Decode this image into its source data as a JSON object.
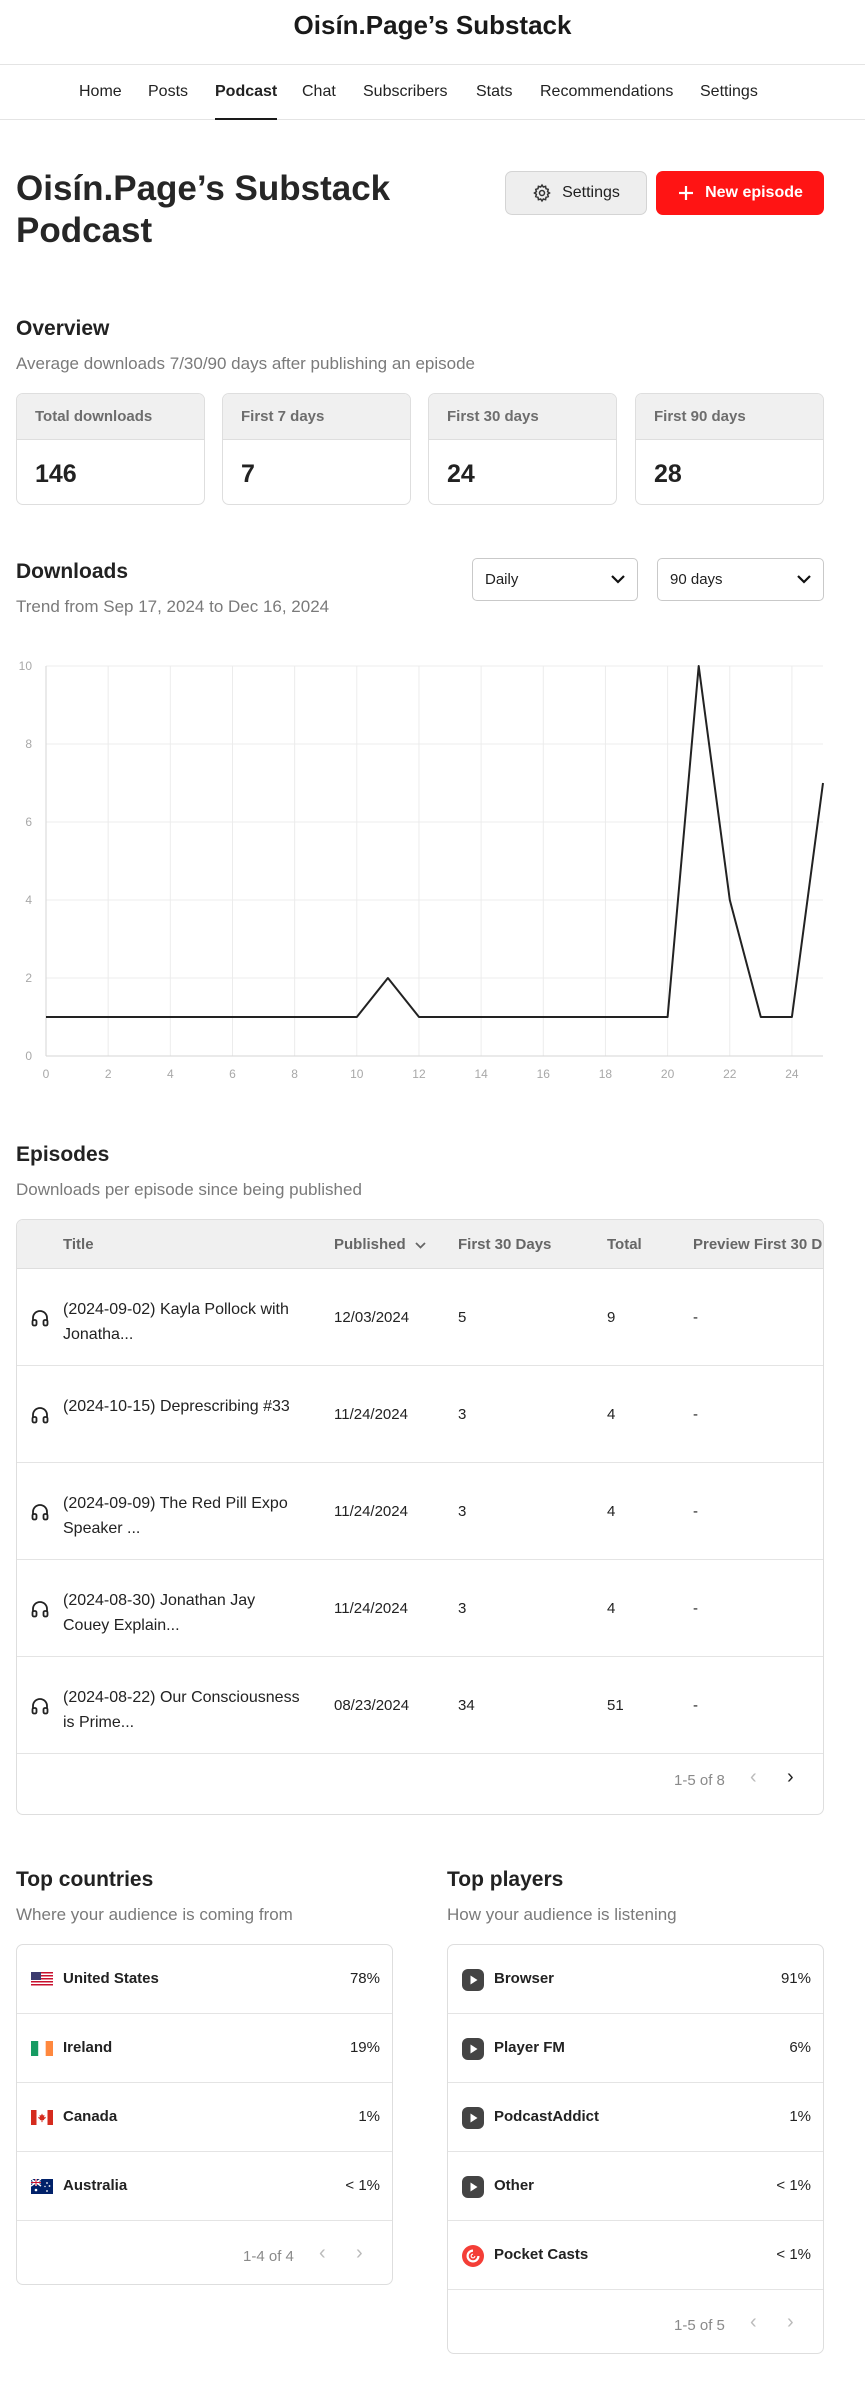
{
  "site_title": "Oisín.Page’s Substack",
  "nav": [
    "Home",
    "Posts",
    "Podcast",
    "Chat",
    "Subscribers",
    "Stats",
    "Recommendations",
    "Settings"
  ],
  "nav_active": "Podcast",
  "page_title": "Oisín.Page’s Substack Podcast",
  "buttons": {
    "settings": "Settings",
    "new_episode": "New episode"
  },
  "overview": {
    "title": "Overview",
    "subtitle": "Average downloads 7/30/90 days after publishing an episode",
    "cards": [
      {
        "label": "Total downloads",
        "value": "146"
      },
      {
        "label": "First 7 days",
        "value": "7"
      },
      {
        "label": "First 30 days",
        "value": "24"
      },
      {
        "label": "First 90 days",
        "value": "28"
      }
    ]
  },
  "downloads": {
    "title": "Downloads",
    "subtitle": "Trend from Sep 17, 2024 to Dec 16, 2024",
    "interval": "Daily",
    "range": "90 days"
  },
  "chart_data": {
    "type": "line",
    "x": [
      0,
      1,
      2,
      3,
      4,
      5,
      6,
      7,
      8,
      9,
      10,
      11,
      12,
      13,
      14,
      15,
      16,
      17,
      18,
      19,
      20,
      21,
      22,
      23,
      23.5,
      24,
      25
    ],
    "y": [
      1,
      1,
      1,
      1,
      1,
      1,
      1,
      1,
      1,
      1,
      1,
      2,
      1,
      1,
      1,
      1,
      1,
      1,
      1,
      1,
      1,
      10,
      4,
      1,
      1,
      1,
      7
    ],
    "xlim": [
      0,
      25
    ],
    "ylim": [
      0,
      10
    ],
    "x_ticks": [
      0,
      2,
      4,
      6,
      8,
      10,
      12,
      14,
      16,
      18,
      20,
      22,
      24
    ],
    "y_ticks": [
      0,
      2,
      4,
      6,
      8,
      10
    ],
    "grid": true,
    "color": "#222222"
  },
  "episodes": {
    "title": "Episodes",
    "subtitle": "Downloads per episode since being published",
    "columns": [
      "Title",
      "Published",
      "First 30 Days",
      "Total",
      "Preview First 30 D"
    ],
    "rows": [
      {
        "title": "(2024-09-02) Kayla Pollock with Jonatha...",
        "published": "12/03/2024",
        "first30": "5",
        "total": "9",
        "preview": "-"
      },
      {
        "title": "(2024-10-15) Deprescribing #33",
        "published": "11/24/2024",
        "first30": "3",
        "total": "4",
        "preview": "-"
      },
      {
        "title": "(2024-09-09) The Red Pill Expo Speaker ...",
        "published": "11/24/2024",
        "first30": "3",
        "total": "4",
        "preview": "-"
      },
      {
        "title": "(2024-08-30) Jonathan Jay Couey Explain...",
        "published": "11/24/2024",
        "first30": "3",
        "total": "4",
        "preview": "-"
      },
      {
        "title": "(2024-08-22) Our Consciousness is Prime...",
        "published": "08/23/2024",
        "first30": "34",
        "total": "51",
        "preview": "-"
      }
    ],
    "pager": "1-5 of 8"
  },
  "countries": {
    "title": "Top countries",
    "subtitle": "Where your audience is coming from",
    "rows": [
      {
        "name": "United States",
        "value": "78%",
        "flag": "us-flag"
      },
      {
        "name": "Ireland",
        "value": "19%",
        "flag": "ireland-flag"
      },
      {
        "name": "Canada",
        "value": "1%",
        "flag": "canada-flag"
      },
      {
        "name": "Australia",
        "value": "< 1%",
        "flag": "australia-flag"
      }
    ],
    "pager": "1-4 of 4"
  },
  "players": {
    "title": "Top players",
    "subtitle": "How your audience is listening",
    "rows": [
      {
        "name": "Browser",
        "value": "91%"
      },
      {
        "name": "Player FM",
        "value": "6%"
      },
      {
        "name": "PodcastAddict",
        "value": "1%"
      },
      {
        "name": "Other",
        "value": "< 1%"
      },
      {
        "name": "Pocket Casts",
        "value": "< 1%"
      }
    ],
    "pager": "1-5 of 5"
  }
}
